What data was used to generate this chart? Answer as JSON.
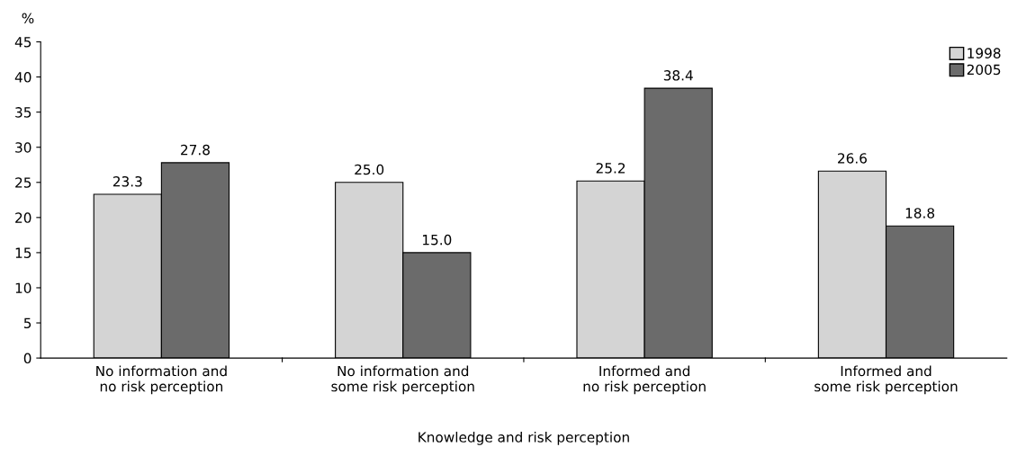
{
  "chart_data": {
    "type": "bar",
    "xlabel": "Knowledge and risk perception",
    "ylabel": "%",
    "categories": [
      "No information and\nno risk perception",
      "No information and\nsome risk perception",
      "Informed and\nno risk perception",
      "Informed and\nsome risk perception"
    ],
    "series": [
      {
        "name": "1998",
        "color": "#d4d4d4",
        "values": [
          23.3,
          25.0,
          25.2,
          26.6
        ],
        "value_labels": [
          "23.3",
          "25.0",
          "25.2",
          "26.6"
        ]
      },
      {
        "name": "2005",
        "color": "#6b6b6b",
        "values": [
          27.8,
          15.0,
          38.4,
          18.8
        ],
        "value_labels": [
          "27.8",
          "15.0",
          "38.4",
          "18.8"
        ]
      }
    ],
    "ylim": [
      0,
      45
    ],
    "yticks": [
      0,
      5,
      10,
      15,
      20,
      25,
      30,
      35,
      40,
      45
    ],
    "grid": false,
    "legend": "top right"
  }
}
